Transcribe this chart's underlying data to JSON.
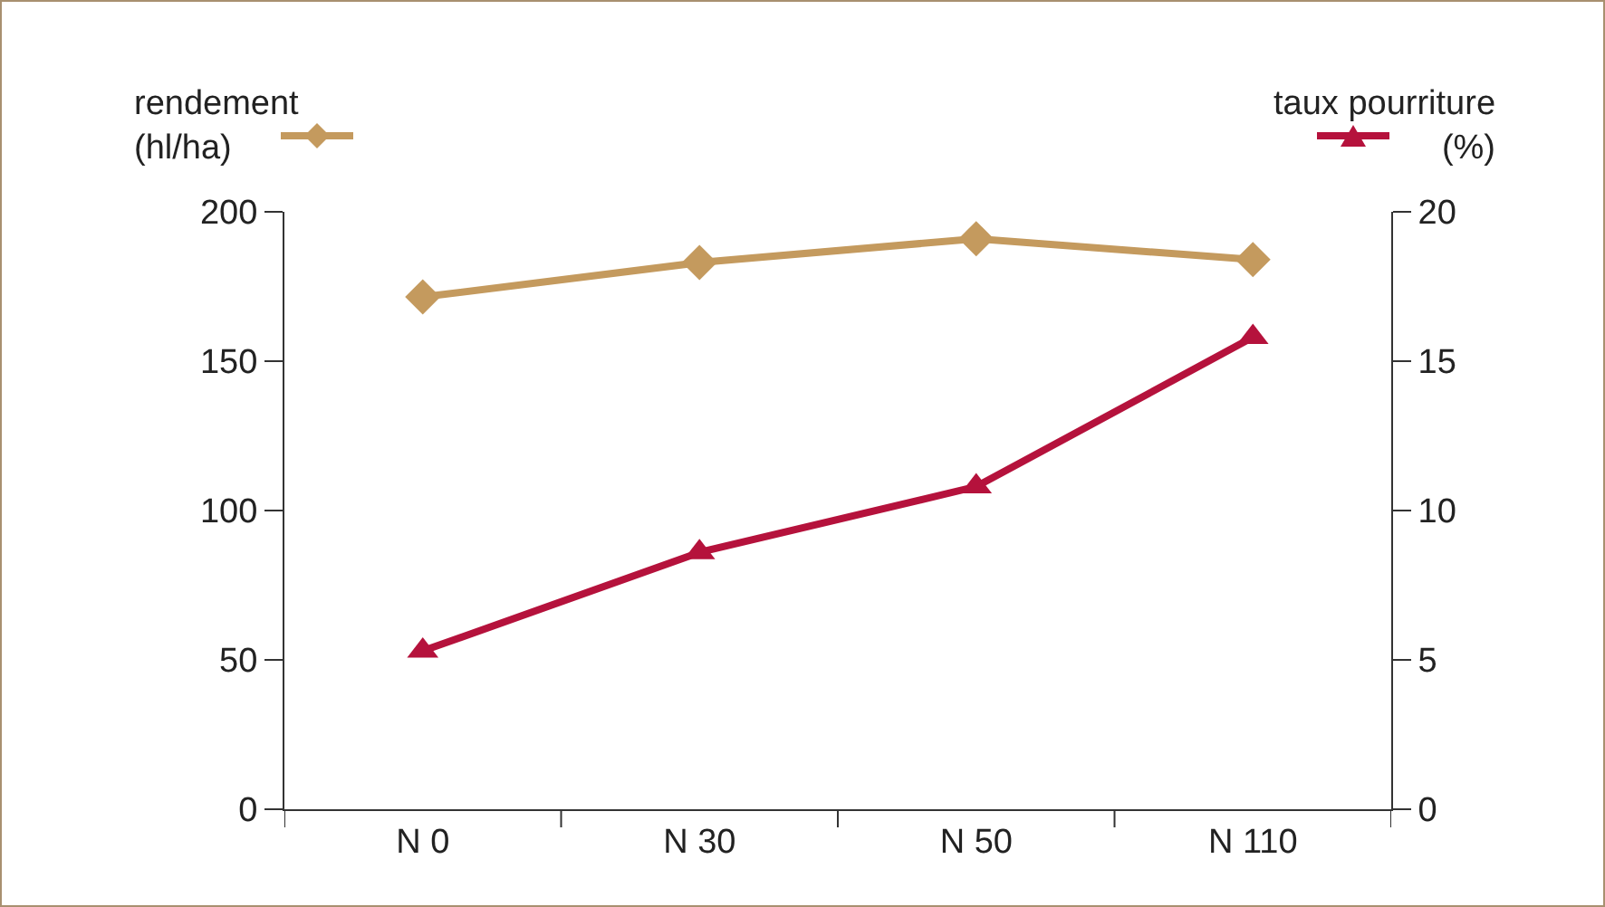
{
  "chart_data": {
    "type": "line",
    "categories": [
      "N 0",
      "N 30",
      "N 50",
      "N 110"
    ],
    "ylabel": "rendement\n(hl/ha)",
    "y2label": "taux pourriture\n(%)",
    "series": [
      {
        "color": "#c49a5e",
        "marker": "diamond",
        "values": [
          171.5,
          183,
          191,
          184
        ]
      },
      {
        "color": "#b5123c",
        "marker": "triangle",
        "axis": "y2",
        "values": [
          5.3,
          8.6,
          10.8,
          15.8
        ]
      }
    ],
    "ylim": [
      0,
      200
    ],
    "yticks": [
      0,
      50,
      100,
      150,
      200
    ],
    "y2lim": [
      0,
      20
    ],
    "y2ticks": [
      0,
      5,
      10,
      15,
      20
    ],
    "grid": false,
    "line_style": "solid"
  }
}
